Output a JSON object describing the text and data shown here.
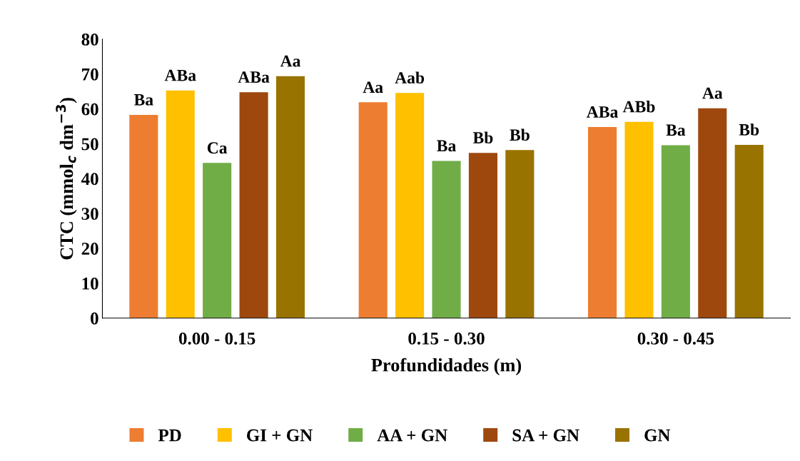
{
  "chart_data": {
    "type": "bar",
    "xlabel": "Profundidades (m)",
    "ylabel": "CTC (mmol$_{c}$ dm$^{−3}$)",
    "categories": [
      "0.00 - 0.15",
      "0.15 - 0.30",
      "0.30 - 0.45"
    ],
    "ylim": [
      0,
      80
    ],
    "yticks": [
      0,
      10,
      20,
      30,
      40,
      50,
      60,
      70,
      80
    ],
    "grid": false,
    "legend": "bottom",
    "series": [
      {
        "name": "PD",
        "color": "#ed7d31",
        "values": [
          58.3,
          61.9,
          54.8
        ],
        "value_labels": [
          "Ba",
          "Aa",
          "ABa"
        ]
      },
      {
        "name": "GI + GN",
        "color": "#ffc000",
        "values": [
          65.3,
          64.6,
          56.3
        ],
        "value_labels": [
          "ABa",
          "Aab",
          "ABb"
        ]
      },
      {
        "name": "AA + GN",
        "color": "#70ad47",
        "values": [
          44.5,
          45.1,
          49.6
        ],
        "value_labels": [
          "Ca",
          "Ba",
          "Ba"
        ]
      },
      {
        "name": "SA + GN",
        "color": "#9e480e",
        "values": [
          64.8,
          47.4,
          60.2
        ],
        "value_labels": [
          "ABa",
          "Bb",
          "Aa"
        ]
      },
      {
        "name": "GN",
        "color": "#997300",
        "values": [
          69.4,
          48.2,
          49.7
        ],
        "value_labels": [
          "Aa",
          "Bb",
          "Bb"
        ]
      }
    ]
  }
}
